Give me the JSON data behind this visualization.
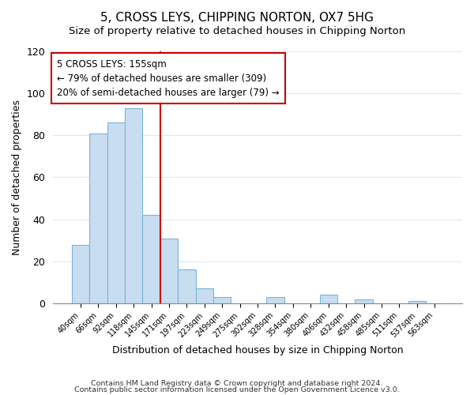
{
  "title": "5, CROSS LEYS, CHIPPING NORTON, OX7 5HG",
  "subtitle": "Size of property relative to detached houses in Chipping Norton",
  "xlabel": "Distribution of detached houses by size in Chipping Norton",
  "ylabel": "Number of detached properties",
  "footnote1": "Contains HM Land Registry data © Crown copyright and database right 2024.",
  "footnote2": "Contains public sector information licensed under the Open Government Licence v3.0.",
  "bin_labels": [
    "40sqm",
    "66sqm",
    "92sqm",
    "118sqm",
    "145sqm",
    "171sqm",
    "197sqm",
    "223sqm",
    "249sqm",
    "275sqm",
    "302sqm",
    "328sqm",
    "354sqm",
    "380sqm",
    "406sqm",
    "432sqm",
    "458sqm",
    "485sqm",
    "511sqm",
    "537sqm",
    "563sqm"
  ],
  "bar_heights": [
    28,
    81,
    86,
    93,
    42,
    31,
    16,
    7,
    3,
    0,
    0,
    3,
    0,
    0,
    4,
    0,
    2,
    0,
    0,
    1,
    0
  ],
  "bar_color": "#c8ddef",
  "bar_edge_color": "#7ab5d8",
  "vline_index": 4.5,
  "vline_color": "#cc0000",
  "annotation_title": "5 CROSS LEYS: 155sqm",
  "annotation_line1": "← 79% of detached houses are smaller (309)",
  "annotation_line2": "20% of semi-detached houses are larger (79) →",
  "annotation_box_color": "#cc0000",
  "ylim": [
    0,
    120
  ],
  "yticks": [
    0,
    20,
    40,
    60,
    80,
    100,
    120
  ],
  "grid_color": "#dde8f0",
  "title_fontsize": 11,
  "subtitle_fontsize": 9.5
}
